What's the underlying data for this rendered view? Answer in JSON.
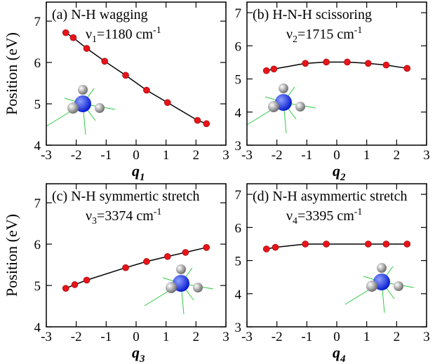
{
  "chart_data": [
    {
      "type": "line",
      "panel_label": "(a) N-H wagging",
      "annotation": {
        "symbol": "ν",
        "sub": "1",
        "text": "=1180 cm",
        "sup": "-1"
      },
      "xlabel": {
        "text": "q",
        "sub": "1"
      },
      "ylabel": "Position (eV)",
      "x": [
        -2.35,
        -2.1,
        -1.65,
        -1.05,
        -0.35,
        0.35,
        1.05,
        2.05,
        2.35
      ],
      "values": [
        6.72,
        6.6,
        6.34,
        6.03,
        5.69,
        5.33,
        5.03,
        4.6,
        4.52
      ],
      "color": "#e8141a",
      "line_color": "#000000",
      "xlim": [
        -3,
        3
      ],
      "xticks": [
        -3,
        -2,
        -1,
        0,
        1,
        2,
        3
      ],
      "ylim": [
        4,
        7.46
      ],
      "yticks": [
        4,
        5,
        6,
        7
      ]
    },
    {
      "type": "line",
      "panel_label": "(b) H-N-H scissoring",
      "annotation": {
        "symbol": "ν",
        "sub": "2",
        "text": "=1715 cm",
        "sup": "-1"
      },
      "xlabel": {
        "text": "q",
        "sub": "2"
      },
      "x": [
        -2.35,
        -2.1,
        -1.05,
        -0.35,
        0.35,
        1.05,
        1.65,
        2.35
      ],
      "values": [
        5.25,
        5.3,
        5.47,
        5.51,
        5.51,
        5.47,
        5.42,
        5.32
      ],
      "color": "#e8141a",
      "line_color": "#000000",
      "xlim": [
        -3,
        3
      ],
      "xticks": [
        -3,
        -2,
        -1,
        0,
        1,
        2,
        3
      ],
      "ylim": [
        3,
        7.32
      ],
      "yticks": [
        3,
        4,
        5,
        6,
        7
      ]
    },
    {
      "type": "line",
      "panel_label": "(c) N-H symmertic stretch",
      "annotation": {
        "symbol": "ν",
        "sub": "3",
        "text": "=3374 cm",
        "sup": "-1"
      },
      "xlabel": {
        "text": "q",
        "sub": "3"
      },
      "ylabel": "Position (eV)",
      "x": [
        -2.35,
        -2.05,
        -1.65,
        -0.35,
        0.35,
        1.05,
        1.65,
        2.35
      ],
      "values": [
        4.93,
        5.02,
        5.13,
        5.43,
        5.58,
        5.7,
        5.8,
        5.92
      ],
      "color": "#e8141a",
      "line_color": "#000000",
      "xlim": [
        -3,
        3
      ],
      "xticks": [
        -3,
        -2,
        -1,
        0,
        1,
        2,
        3
      ],
      "ylim": [
        4,
        7.46
      ],
      "yticks": [
        4,
        5,
        6,
        7
      ]
    },
    {
      "type": "line",
      "panel_label": "(d) N-H asymmertic stretch",
      "annotation": {
        "symbol": "ν",
        "sub": "4",
        "text": "=3395 cm",
        "sup": "-1"
      },
      "xlabel": {
        "text": "q",
        "sub": "4"
      },
      "x": [
        -2.35,
        -2.05,
        -1.05,
        -0.35,
        1.05,
        1.65,
        2.35
      ],
      "values": [
        5.35,
        5.4,
        5.5,
        5.5,
        5.5,
        5.5,
        5.5
      ],
      "color": "#e8141a",
      "line_color": "#000000",
      "xlim": [
        -3,
        3
      ],
      "xticks": [
        -3,
        -2,
        -1,
        0,
        1,
        2,
        3
      ],
      "ylim": [
        3,
        7.32
      ],
      "yticks": [
        3,
        4,
        5,
        6,
        7
      ]
    }
  ]
}
